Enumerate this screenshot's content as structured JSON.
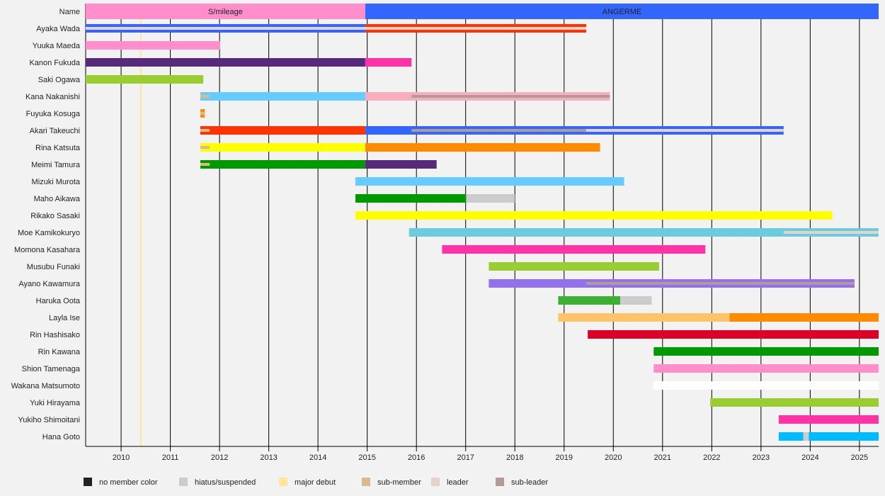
{
  "chart_data": {
    "type": "timeline",
    "xlim": [
      2009.28,
      2025.39
    ],
    "x_ticks": [
      2010,
      2011,
      2012,
      2013,
      2014,
      2015,
      2016,
      2017,
      2018,
      2019,
      2020,
      2021,
      2022,
      2023,
      2024,
      2025
    ],
    "grid": true,
    "major_debut": 2010.4,
    "header": {
      "label": "Name",
      "groups": [
        {
          "name": "S/mileage",
          "start": 2009.28,
          "end": 2014.96,
          "color": "#ff8ecb"
        },
        {
          "name": "ANGERME",
          "start": 2014.96,
          "end": 2025.39,
          "color": "#3366ff"
        }
      ]
    },
    "members": [
      {
        "name": "Ayaka Wada",
        "segments": [
          {
            "s": 2009.28,
            "e": 2014.96,
            "c": "#3366ff"
          },
          {
            "s": 2014.96,
            "e": 2019.45,
            "c": "#ff3300"
          }
        ],
        "marks": [
          {
            "type": "leader",
            "s": 2009.28,
            "e": 2019.45
          }
        ]
      },
      {
        "name": "Yuuka Maeda",
        "segments": [
          {
            "s": 2009.28,
            "e": 2012.01,
            "c": "#ff8ecb"
          }
        ],
        "marks": []
      },
      {
        "name": "Kanon Fukuda",
        "segments": [
          {
            "s": 2009.28,
            "e": 2014.96,
            "c": "#552a7a"
          },
          {
            "s": 2014.96,
            "e": 2015.9,
            "c": "#ff33a6"
          }
        ],
        "marks": []
      },
      {
        "name": "Saki Ogawa",
        "segments": [
          {
            "s": 2009.28,
            "e": 2011.67,
            "c": "#9acd32"
          }
        ],
        "marks": []
      },
      {
        "name": "Kana Nakanishi",
        "segments": [
          {
            "s": 2011.61,
            "e": 2014.96,
            "c": "#66ccff"
          },
          {
            "s": 2014.96,
            "e": 2019.93,
            "c": "#f8aebd"
          }
        ],
        "marks": [
          {
            "type": "sub-member",
            "s": 2011.61,
            "e": 2011.8
          },
          {
            "type": "sub-leader",
            "s": 2015.9,
            "e": 2019.93
          }
        ]
      },
      {
        "name": "Fuyuka Kosuga",
        "segments": [
          {
            "s": 2011.61,
            "e": 2011.7,
            "c": "#ff8c00"
          }
        ],
        "marks": [
          {
            "type": "sub-member",
            "s": 2011.61,
            "e": 2011.7
          }
        ]
      },
      {
        "name": "Akari Takeuchi",
        "segments": [
          {
            "s": 2011.61,
            "e": 2014.96,
            "c": "#ff3300"
          },
          {
            "s": 2014.96,
            "e": 2023.46,
            "c": "#3366ff"
          }
        ],
        "marks": [
          {
            "type": "sub-member",
            "s": 2011.61,
            "e": 2011.8
          },
          {
            "type": "sub-leader",
            "s": 2015.9,
            "e": 2019.45
          },
          {
            "type": "leader",
            "s": 2019.45,
            "e": 2023.46
          }
        ]
      },
      {
        "name": "Rina Katsuta",
        "segments": [
          {
            "s": 2011.61,
            "e": 2014.96,
            "c": "#ffff00"
          },
          {
            "s": 2014.96,
            "e": 2019.73,
            "c": "#ff8c00"
          }
        ],
        "marks": [
          {
            "type": "sub-member",
            "s": 2011.61,
            "e": 2011.8
          }
        ]
      },
      {
        "name": "Meimi Tamura",
        "segments": [
          {
            "s": 2011.61,
            "e": 2014.96,
            "c": "#009900"
          },
          {
            "s": 2014.96,
            "e": 2016.41,
            "c": "#552a7a"
          }
        ],
        "marks": [
          {
            "type": "sub-member",
            "s": 2011.61,
            "e": 2011.8
          }
        ]
      },
      {
        "name": "Mizuki Murota",
        "segments": [
          {
            "s": 2014.76,
            "e": 2020.22,
            "c": "#66ccff"
          }
        ],
        "marks": []
      },
      {
        "name": "Maho Aikawa",
        "segments": [
          {
            "s": 2014.76,
            "e": 2017.01,
            "c": "#009900"
          },
          {
            "s": 2017.01,
            "e": 2018.0,
            "c": "#cccccc"
          }
        ],
        "marks": []
      },
      {
        "name": "Rikako Sasaki",
        "segments": [
          {
            "s": 2014.76,
            "e": 2024.45,
            "c": "#ffff00"
          }
        ],
        "marks": []
      },
      {
        "name": "Moe Kamikokuryo",
        "segments": [
          {
            "s": 2015.85,
            "e": 2025.39,
            "c": "#6bccdd"
          }
        ],
        "marks": [
          {
            "type": "leader",
            "s": 2023.46,
            "e": 2025.39
          }
        ]
      },
      {
        "name": "Momona Kasahara",
        "segments": [
          {
            "s": 2016.52,
            "e": 2021.87,
            "c": "#ff33a6"
          }
        ],
        "marks": []
      },
      {
        "name": "Musubu Funaki",
        "segments": [
          {
            "s": 2017.47,
            "e": 2020.93,
            "c": "#9acd32"
          }
        ],
        "marks": []
      },
      {
        "name": "Ayano Kawamura",
        "segments": [
          {
            "s": 2017.47,
            "e": 2024.9,
            "c": "#9370ee"
          }
        ],
        "marks": [
          {
            "type": "sub-leader",
            "s": 2019.45,
            "e": 2024.9
          }
        ]
      },
      {
        "name": "Haruka Oota",
        "segments": [
          {
            "s": 2018.88,
            "e": 2020.14,
            "c": "#3cb034"
          },
          {
            "s": 2020.14,
            "e": 2020.78,
            "c": "#cccccc"
          }
        ],
        "marks": []
      },
      {
        "name": "Layla Ise",
        "segments": [
          {
            "s": 2018.88,
            "e": 2022.36,
            "c": "#ffc36a"
          },
          {
            "s": 2022.36,
            "e": 2025.39,
            "c": "#ff8c00"
          }
        ],
        "marks": []
      },
      {
        "name": "Rin Hashisako",
        "segments": [
          {
            "s": 2019.48,
            "e": 2025.39,
            "c": "#dd0027"
          }
        ],
        "marks": []
      },
      {
        "name": "Rin Kawana",
        "segments": [
          {
            "s": 2020.82,
            "e": 2025.39,
            "c": "#009900"
          }
        ],
        "marks": []
      },
      {
        "name": "Shion Tamenaga",
        "segments": [
          {
            "s": 2020.82,
            "e": 2025.39,
            "c": "#ff8ecb"
          }
        ],
        "marks": []
      },
      {
        "name": "Wakana Matsumoto",
        "segments": [
          {
            "s": 2020.82,
            "e": 2025.39,
            "c": "#ffffff"
          }
        ],
        "marks": []
      },
      {
        "name": "Yuki Hirayama",
        "segments": [
          {
            "s": 2021.97,
            "e": 2025.39,
            "c": "#9acd32"
          }
        ],
        "marks": []
      },
      {
        "name": "Yukiho Shimoitani",
        "segments": [
          {
            "s": 2023.36,
            "e": 2025.39,
            "c": "#ff33a6"
          }
        ],
        "marks": []
      },
      {
        "name": "Hana Goto",
        "segments": [
          {
            "s": 2023.36,
            "e": 2023.86,
            "c": "#00bbff"
          },
          {
            "s": 2023.86,
            "e": 2023.97,
            "c": "#cccccc"
          },
          {
            "s": 2023.97,
            "e": 2025.39,
            "c": "#00bbff"
          }
        ],
        "marks": []
      }
    ],
    "mark_colors": {
      "leader": "#e3d3ca",
      "sub-leader": "#b19a9a",
      "sub-member": "#dab98a"
    },
    "legend": [
      {
        "label": "no member color",
        "color": "#222222"
      },
      {
        "label": "hiatus/suspended",
        "color": "#cccccc"
      },
      {
        "label": "major debut",
        "color": "#ffe49a"
      },
      {
        "label": "sub-member",
        "color": "#dab98a"
      },
      {
        "label": "leader",
        "color": "#e3d3ca"
      },
      {
        "label": "sub-leader",
        "color": "#b19a9a"
      }
    ]
  }
}
